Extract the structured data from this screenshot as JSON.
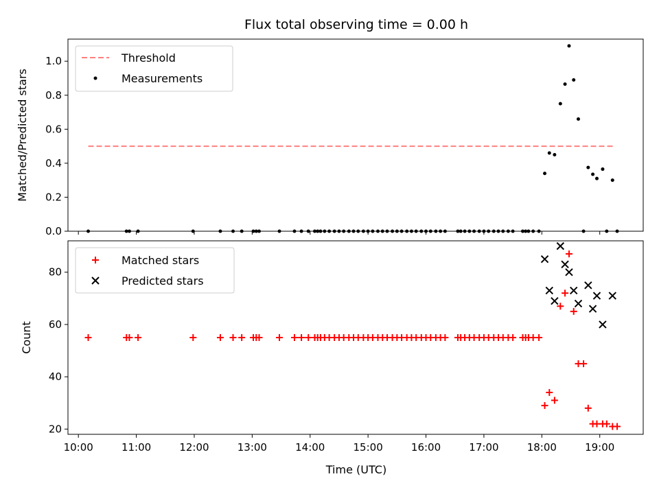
{
  "chart_data": {
    "title": "Flux total observing time = 0.00 h",
    "xlabel": "Time (UTC)",
    "x_ticks": [
      "10:00",
      "11:00",
      "12:00",
      "13:00",
      "14:00",
      "15:00",
      "16:00",
      "17:00",
      "18:00",
      "19:00"
    ],
    "xlim": [
      9.82,
      19.75
    ],
    "panels": [
      {
        "type": "scatter",
        "ylabel": "Matched/Predicted stars",
        "ylim": [
          0,
          1.13
        ],
        "y_ticks": [
          "0.0",
          "0.2",
          "0.4",
          "0.6",
          "0.8",
          "1.0"
        ],
        "y_tick_values": [
          0,
          0.2,
          0.4,
          0.6,
          0.8,
          1.0
        ],
        "legend_position": "top-left",
        "series": [
          {
            "name": "Threshold",
            "kind": "dashed-line",
            "color": "#ff7f7f",
            "x": [
              10.17,
              19.25
            ],
            "y": [
              0.5,
              0.5
            ]
          },
          {
            "name": "Measurements",
            "kind": "dots",
            "color": "#000000",
            "x": [
              10.17,
              10.83,
              10.88,
              11.03,
              11.98,
              12.45,
              12.67,
              12.82,
              13.02,
              13.07,
              13.12,
              13.47,
              13.73,
              13.85,
              13.97,
              14.08,
              14.13,
              14.18,
              14.25,
              14.33,
              14.42,
              14.5,
              14.58,
              14.67,
              14.75,
              14.83,
              14.92,
              15.0,
              15.08,
              15.17,
              15.25,
              15.33,
              15.42,
              15.5,
              15.58,
              15.67,
              15.75,
              15.83,
              15.92,
              16.0,
              16.08,
              16.17,
              16.25,
              16.33,
              16.55,
              16.6,
              16.67,
              16.75,
              16.83,
              16.92,
              17.0,
              17.08,
              17.17,
              17.25,
              17.33,
              17.42,
              17.5,
              17.67,
              17.72,
              17.77,
              17.85,
              17.95,
              18.05,
              18.13,
              18.22,
              18.32,
              18.4,
              18.47,
              18.55,
              18.63,
              18.72,
              18.8,
              18.88,
              18.95,
              19.05,
              19.12,
              19.22,
              19.3
            ],
            "y": [
              0,
              0,
              0,
              0,
              0,
              0,
              0,
              0,
              0,
              0,
              0,
              0,
              0,
              0,
              0,
              0,
              0,
              0,
              0,
              0,
              0,
              0,
              0,
              0,
              0,
              0,
              0,
              0,
              0,
              0,
              0,
              0,
              0,
              0,
              0,
              0,
              0,
              0,
              0,
              0,
              0,
              0,
              0,
              0,
              0,
              0,
              0,
              0,
              0,
              0,
              0,
              0,
              0,
              0,
              0,
              0,
              0,
              0,
              0,
              0,
              0,
              0,
              0.34,
              0.46,
              0.45,
              0.75,
              0.865,
              1.09,
              0.89,
              0.66,
              0,
              0.375,
              0.335,
              0.31,
              0.365,
              0,
              0.3,
              0
            ]
          }
        ]
      },
      {
        "type": "scatter",
        "ylabel": "Count",
        "ylim": [
          18,
          92
        ],
        "y_ticks": [
          "20",
          "40",
          "60",
          "80"
        ],
        "y_tick_values": [
          20,
          40,
          60,
          80
        ],
        "legend_position": "top-left",
        "series": [
          {
            "name": "Matched stars",
            "kind": "plus",
            "color": "#ff0000",
            "x": [
              10.17,
              10.83,
              10.88,
              11.03,
              11.98,
              12.45,
              12.67,
              12.82,
              13.02,
              13.07,
              13.12,
              13.47,
              13.73,
              13.85,
              13.97,
              14.08,
              14.13,
              14.18,
              14.25,
              14.33,
              14.42,
              14.5,
              14.58,
              14.67,
              14.75,
              14.83,
              14.92,
              15.0,
              15.08,
              15.17,
              15.25,
              15.33,
              15.42,
              15.5,
              15.58,
              15.67,
              15.75,
              15.83,
              15.92,
              16.0,
              16.08,
              16.17,
              16.25,
              16.33,
              16.55,
              16.6,
              16.67,
              16.75,
              16.83,
              16.92,
              17.0,
              17.08,
              17.17,
              17.25,
              17.33,
              17.42,
              17.5,
              17.67,
              17.72,
              17.77,
              17.85,
              17.95,
              18.05,
              18.13,
              18.22,
              18.32,
              18.4,
              18.47,
              18.55,
              18.63,
              18.72,
              18.8,
              18.88,
              18.95,
              19.05,
              19.12,
              19.22,
              19.3
            ],
            "y": [
              55,
              55,
              55,
              55,
              55,
              55,
              55,
              55,
              55,
              55,
              55,
              55,
              55,
              55,
              55,
              55,
              55,
              55,
              55,
              55,
              55,
              55,
              55,
              55,
              55,
              55,
              55,
              55,
              55,
              55,
              55,
              55,
              55,
              55,
              55,
              55,
              55,
              55,
              55,
              55,
              55,
              55,
              55,
              55,
              55,
              55,
              55,
              55,
              55,
              55,
              55,
              55,
              55,
              55,
              55,
              55,
              55,
              55,
              55,
              55,
              55,
              55,
              29,
              34,
              31,
              67,
              72,
              87,
              65,
              45,
              45,
              28,
              22,
              22,
              22,
              22,
              21,
              21
            ]
          },
          {
            "name": "Predicted stars",
            "kind": "x",
            "color": "#000000",
            "x": [
              18.05,
              18.13,
              18.22,
              18.32,
              18.4,
              18.47,
              18.55,
              18.63,
              18.8,
              18.88,
              18.95,
              19.05,
              19.22
            ],
            "y": [
              85,
              73,
              69,
              90,
              83,
              80,
              73,
              68,
              75,
              66,
              71,
              60,
              71
            ]
          }
        ]
      }
    ]
  }
}
